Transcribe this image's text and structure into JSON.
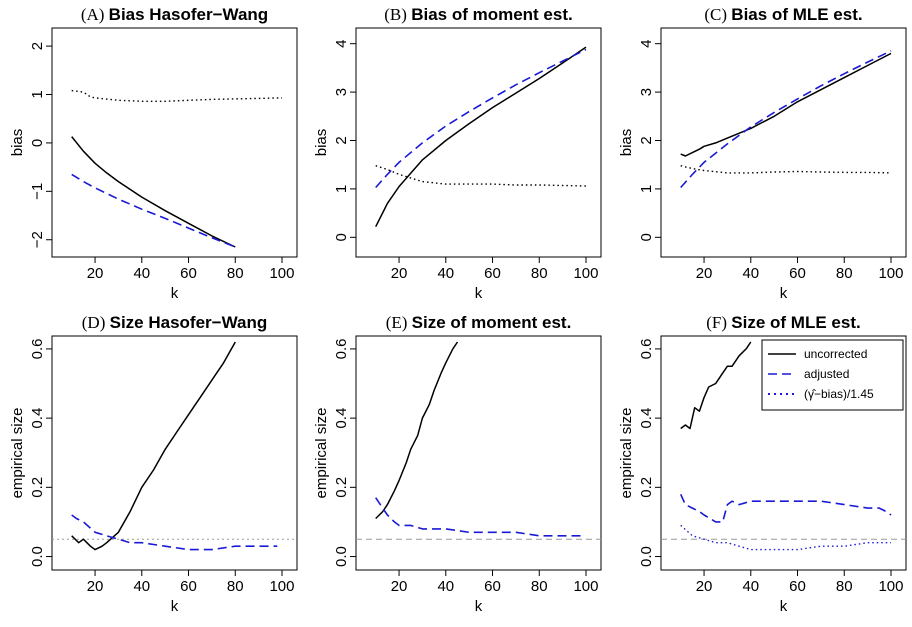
{
  "colors": {
    "uncorrected": "#000000",
    "adjusted": "#1a1ad6",
    "corrected": "#000000",
    "corrected_panelF": "#1a1ad6",
    "refline": "#9a9a9a"
  },
  "legend": {
    "placement": "top-right of panel F",
    "entries": [
      "uncorrected",
      "adjusted",
      "(γ̂−bias)/1.45"
    ]
  },
  "chart_data": [
    {
      "type": "line",
      "letter": "(A)",
      "title": "Bias Hasofer−Wang",
      "xlabel": "k",
      "ylabel": "bias",
      "xlim": [
        5,
        103
      ],
      "ylim": [
        -2.15,
        2.25
      ],
      "xticks": [
        "20",
        "40",
        "60",
        "80",
        "100"
      ],
      "yticks": [
        "−2",
        "−1",
        "0",
        "1",
        "2"
      ],
      "series": [
        {
          "name": "uncorrected",
          "style": "solid",
          "x": [
            10,
            15,
            20,
            25,
            30,
            40,
            50,
            60,
            70,
            80
          ],
          "y": [
            0.13,
            -0.17,
            -0.42,
            -0.62,
            -0.8,
            -1.12,
            -1.4,
            -1.66,
            -1.92,
            -2.15
          ]
        },
        {
          "name": "adjusted",
          "style": "dashed",
          "x": [
            10,
            15,
            20,
            30,
            40,
            50,
            60,
            70,
            80
          ],
          "y": [
            -0.65,
            -0.8,
            -0.93,
            -1.16,
            -1.37,
            -1.56,
            -1.76,
            -1.96,
            -2.15
          ]
        },
        {
          "name": "(γ̂−bias)/1.45",
          "style": "dotted",
          "x": [
            10,
            15,
            18,
            20,
            30,
            40,
            50,
            60,
            70,
            80,
            90,
            100
          ],
          "y": [
            1.08,
            1.05,
            0.95,
            0.93,
            0.88,
            0.86,
            0.86,
            0.88,
            0.9,
            0.91,
            0.92,
            0.93
          ]
        }
      ]
    },
    {
      "type": "line",
      "letter": "(B)",
      "title": "Bias of moment est.",
      "xlabel": "k",
      "ylabel": "bias",
      "xlim": [
        5,
        103
      ],
      "ylim": [
        -0.2,
        4.2
      ],
      "xticks": [
        "20",
        "40",
        "60",
        "80",
        "100"
      ],
      "yticks": [
        "0",
        "1",
        "2",
        "3",
        "4"
      ],
      "series": [
        {
          "name": "uncorrected",
          "style": "solid",
          "x": [
            10,
            15,
            20,
            30,
            40,
            50,
            60,
            70,
            80,
            90,
            100
          ],
          "y": [
            0.22,
            0.7,
            1.05,
            1.6,
            2.0,
            2.35,
            2.68,
            2.98,
            3.28,
            3.6,
            3.93
          ]
        },
        {
          "name": "adjusted",
          "style": "dashed",
          "x": [
            10,
            15,
            20,
            30,
            40,
            50,
            60,
            70,
            80,
            90,
            100
          ],
          "y": [
            1.03,
            1.3,
            1.55,
            1.95,
            2.3,
            2.6,
            2.88,
            3.15,
            3.4,
            3.64,
            3.88
          ]
        },
        {
          "name": "(γ̂−bias)/1.45",
          "style": "dotted",
          "x": [
            10,
            15,
            20,
            30,
            40,
            50,
            60,
            70,
            80,
            90,
            100
          ],
          "y": [
            1.48,
            1.4,
            1.3,
            1.15,
            1.1,
            1.1,
            1.1,
            1.08,
            1.08,
            1.07,
            1.06
          ]
        }
      ]
    },
    {
      "type": "line",
      "letter": "(C)",
      "title": "Bias of MLE est.",
      "xlabel": "k",
      "ylabel": "bias",
      "xlim": [
        5,
        103
      ],
      "ylim": [
        -0.2,
        4.2
      ],
      "xticks": [
        "20",
        "40",
        "60",
        "80",
        "100"
      ],
      "yticks": [
        "0",
        "1",
        "2",
        "3",
        "4"
      ],
      "series": [
        {
          "name": "uncorrected",
          "style": "solid",
          "x": [
            10,
            12,
            15,
            18,
            20,
            25,
            30,
            40,
            50,
            60,
            70,
            80,
            90,
            100
          ],
          "y": [
            1.72,
            1.68,
            1.75,
            1.82,
            1.88,
            1.95,
            2.05,
            2.25,
            2.5,
            2.8,
            3.05,
            3.3,
            3.55,
            3.8
          ]
        },
        {
          "name": "adjusted",
          "style": "dashed",
          "x": [
            10,
            15,
            20,
            30,
            40,
            50,
            60,
            70,
            80,
            90,
            100
          ],
          "y": [
            1.03,
            1.3,
            1.55,
            1.93,
            2.28,
            2.58,
            2.86,
            3.13,
            3.38,
            3.62,
            3.85
          ]
        },
        {
          "name": "(γ̂−bias)/1.45",
          "style": "dotted",
          "x": [
            10,
            15,
            20,
            30,
            40,
            50,
            60,
            70,
            80,
            90,
            100
          ],
          "y": [
            1.48,
            1.42,
            1.38,
            1.33,
            1.33,
            1.35,
            1.36,
            1.35,
            1.34,
            1.34,
            1.33
          ]
        }
      ]
    },
    {
      "type": "line",
      "letter": "(D)",
      "title": "Size Hasofer−Wang",
      "xlabel": "k",
      "ylabel": "empirical size",
      "xlim": [
        5,
        103
      ],
      "ylim": [
        -0.01,
        0.62
      ],
      "xticks": [
        "20",
        "40",
        "60",
        "80",
        "100"
      ],
      "yticks": [
        "0.0",
        "0.2",
        "0.4",
        "0.6"
      ],
      "reference_line": 0.05,
      "series": [
        {
          "name": "uncorrected",
          "style": "solid",
          "x": [
            10,
            13,
            15,
            18,
            20,
            23,
            25,
            30,
            35,
            40,
            45,
            50,
            55,
            60,
            65,
            70,
            75,
            80
          ],
          "y": [
            0.06,
            0.04,
            0.05,
            0.03,
            0.02,
            0.03,
            0.04,
            0.07,
            0.13,
            0.2,
            0.25,
            0.31,
            0.36,
            0.41,
            0.46,
            0.51,
            0.56,
            0.62
          ]
        },
        {
          "name": "adjusted",
          "style": "dashed",
          "x": [
            10,
            12,
            15,
            20,
            25,
            30,
            35,
            40,
            50,
            60,
            70,
            80,
            90,
            98
          ],
          "y": [
            0.12,
            0.11,
            0.1,
            0.07,
            0.06,
            0.05,
            0.04,
            0.04,
            0.03,
            0.02,
            0.02,
            0.03,
            0.03,
            0.03
          ]
        }
      ]
    },
    {
      "type": "line",
      "letter": "(E)",
      "title": "Size of moment est.",
      "xlabel": "k",
      "ylabel": "empirical size",
      "xlim": [
        5,
        103
      ],
      "ylim": [
        -0.01,
        0.62
      ],
      "xticks": [
        "20",
        "40",
        "60",
        "80",
        "100"
      ],
      "yticks": [
        "0.0",
        "0.2",
        "0.4",
        "0.6"
      ],
      "reference_line": 0.05,
      "series": [
        {
          "name": "uncorrected",
          "style": "solid",
          "x": [
            10,
            13,
            15,
            18,
            20,
            23,
            25,
            28,
            30,
            33,
            35,
            38,
            40,
            43,
            45
          ],
          "y": [
            0.11,
            0.13,
            0.15,
            0.19,
            0.22,
            0.27,
            0.31,
            0.35,
            0.4,
            0.44,
            0.48,
            0.53,
            0.56,
            0.6,
            0.62
          ]
        },
        {
          "name": "adjusted",
          "style": "dashed",
          "x": [
            10,
            13,
            15,
            18,
            20,
            25,
            30,
            40,
            50,
            60,
            70,
            80,
            90,
            98
          ],
          "y": [
            0.17,
            0.14,
            0.12,
            0.1,
            0.09,
            0.09,
            0.08,
            0.08,
            0.07,
            0.07,
            0.07,
            0.06,
            0.06,
            0.06
          ]
        }
      ]
    },
    {
      "type": "line",
      "letter": "(F)",
      "title": "Size of MLE est.",
      "xlabel": "k",
      "ylabel": "empirical size",
      "xlim": [
        5,
        103
      ],
      "ylim": [
        -0.01,
        0.62
      ],
      "xticks": [
        "20",
        "40",
        "60",
        "80",
        "100"
      ],
      "yticks": [
        "0.0",
        "0.2",
        "0.4",
        "0.6"
      ],
      "reference_line": 0.05,
      "series": [
        {
          "name": "uncorrected",
          "style": "solid",
          "x": [
            10,
            12,
            14,
            16,
            18,
            20,
            22,
            25,
            28,
            30,
            32,
            35,
            38,
            40
          ],
          "y": [
            0.37,
            0.38,
            0.37,
            0.43,
            0.42,
            0.46,
            0.49,
            0.5,
            0.53,
            0.55,
            0.55,
            0.58,
            0.6,
            0.62
          ]
        },
        {
          "name": "adjusted",
          "style": "dashed",
          "x": [
            10,
            12,
            15,
            18,
            20,
            25,
            28,
            30,
            32,
            35,
            40,
            50,
            60,
            70,
            80,
            90,
            95,
            98,
            100
          ],
          "y": [
            0.18,
            0.15,
            0.14,
            0.13,
            0.12,
            0.1,
            0.1,
            0.15,
            0.16,
            0.15,
            0.16,
            0.16,
            0.16,
            0.16,
            0.15,
            0.14,
            0.14,
            0.13,
            0.12
          ]
        },
        {
          "name": "(γ̂−bias)/1.45",
          "style": "dotted",
          "x": [
            10,
            15,
            20,
            25,
            30,
            35,
            40,
            50,
            60,
            70,
            80,
            90,
            100
          ],
          "y": [
            0.09,
            0.06,
            0.05,
            0.04,
            0.04,
            0.03,
            0.02,
            0.02,
            0.02,
            0.03,
            0.03,
            0.04,
            0.04
          ]
        }
      ]
    }
  ]
}
